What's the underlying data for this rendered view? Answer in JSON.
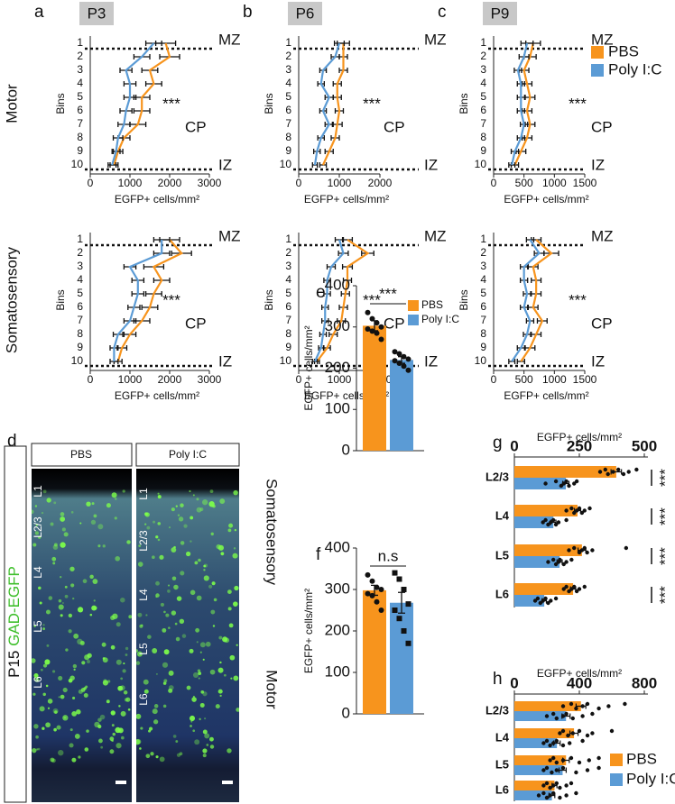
{
  "chart_data": [
    {
      "type": "line",
      "orientation": "horizontal",
      "panel_label": "a",
      "tag": "P3",
      "row_label": "Motor",
      "ylabel": "Bins",
      "xlabel": "EGFP+ cells/mm²",
      "categories": [
        "1",
        "2",
        "3",
        "4",
        "5",
        "6",
        "7",
        "8",
        "9",
        "10"
      ],
      "xlim": [
        0,
        3000
      ],
      "xticks": [
        0,
        1000,
        2000,
        3000
      ],
      "annotations": {
        "top": "MZ",
        "middle": "CP",
        "bottom": "IZ",
        "stat": "***"
      },
      "series": [
        {
          "name": "PBS",
          "color": "#f7941d",
          "values": [
            1900,
            2000,
            1500,
            1600,
            1300,
            1300,
            1200,
            850,
            700,
            600
          ],
          "errors": [
            250,
            250,
            200,
            200,
            200,
            200,
            200,
            150,
            120,
            100
          ]
        },
        {
          "name": "Poly I:C",
          "color": "#5b9bd5",
          "values": [
            1600,
            1300,
            900,
            1000,
            1000,
            900,
            850,
            700,
            650,
            550
          ],
          "errors": [
            200,
            200,
            150,
            150,
            150,
            150,
            150,
            120,
            100,
            100
          ]
        }
      ]
    },
    {
      "type": "line",
      "orientation": "horizontal",
      "panel_label": "b",
      "tag": "P6",
      "ylabel": "Bins",
      "xlabel": "EGFP+ cells/mm²",
      "categories": [
        "1",
        "2",
        "3",
        "4",
        "5",
        "6",
        "7",
        "8",
        "9",
        "10"
      ],
      "xlim": [
        0,
        2000
      ],
      "xticks": [
        0,
        1000,
        2000
      ],
      "annotations": {
        "top": "MZ",
        "middle": "CP",
        "bottom": "IZ",
        "stat": "***"
      },
      "series": [
        {
          "name": "PBS",
          "color": "#f7941d",
          "values": [
            1100,
            1100,
            1100,
            950,
            950,
            1000,
            950,
            900,
            750,
            600
          ],
          "errors": [
            150,
            100,
            100,
            100,
            100,
            100,
            120,
            100,
            100,
            80
          ]
        },
        {
          "name": "Poly I:C",
          "color": "#5b9bd5",
          "values": [
            1000,
            900,
            600,
            550,
            750,
            600,
            750,
            550,
            450,
            400
          ],
          "errors": [
            120,
            100,
            80,
            80,
            100,
            80,
            100,
            80,
            80,
            60
          ]
        }
      ]
    },
    {
      "type": "line",
      "orientation": "horizontal",
      "panel_label": "c",
      "tag": "P9",
      "ylabel": "Bins",
      "xlabel": "EGFP+ cells/mm²",
      "categories": [
        "1",
        "2",
        "3",
        "4",
        "5",
        "6",
        "7",
        "8",
        "9",
        "10"
      ],
      "xlim": [
        0,
        1500
      ],
      "xticks": [
        0,
        500,
        1000,
        1500
      ],
      "legend": "right",
      "annotations": {
        "top": "MZ",
        "middle": "CP",
        "bottom": "IZ",
        "stat": "***"
      },
      "series": [
        {
          "name": "PBS",
          "color": "#f7941d",
          "values": [
            650,
            600,
            500,
            550,
            600,
            550,
            600,
            550,
            450,
            350
          ],
          "errors": [
            120,
            100,
            80,
            80,
            80,
            80,
            80,
            80,
            80,
            60
          ]
        },
        {
          "name": "Poly I:C",
          "color": "#5b9bd5",
          "values": [
            550,
            500,
            400,
            450,
            450,
            450,
            500,
            450,
            350,
            300
          ],
          "errors": [
            100,
            80,
            60,
            60,
            60,
            60,
            60,
            60,
            60,
            50
          ]
        }
      ]
    },
    {
      "type": "line",
      "orientation": "horizontal",
      "row_label": "Somatosensory",
      "ylabel": "Bins",
      "xlabel": "EGFP+ cells/mm²",
      "categories": [
        "1",
        "2",
        "3",
        "4",
        "5",
        "6",
        "7",
        "8",
        "9",
        "10"
      ],
      "xlim": [
        0,
        3000
      ],
      "xticks": [
        0,
        1000,
        2000,
        3000
      ],
      "annotations": {
        "top": "MZ",
        "middle": "CP",
        "bottom": "IZ",
        "stat": "***"
      },
      "series": [
        {
          "name": "PBS",
          "color": "#f7941d",
          "values": [
            2000,
            2300,
            1600,
            1800,
            1600,
            1500,
            1300,
            1000,
            800,
            700
          ],
          "errors": [
            250,
            250,
            250,
            200,
            200,
            200,
            200,
            150,
            120,
            100
          ]
        },
        {
          "name": "Poly I:C",
          "color": "#5b9bd5",
          "values": [
            1800,
            1800,
            1000,
            1200,
            1200,
            1100,
            1000,
            700,
            600,
            600
          ],
          "errors": [
            200,
            200,
            150,
            150,
            150,
            150,
            150,
            120,
            100,
            100
          ]
        }
      ]
    },
    {
      "type": "line",
      "orientation": "horizontal",
      "ylabel": "Bins",
      "xlabel": "EGFP+ cells/mm²",
      "categories": [
        "1",
        "2",
        "3",
        "4",
        "5",
        "6",
        "7",
        "8",
        "9",
        "10"
      ],
      "xlim": [
        0,
        2000
      ],
      "xticks": [
        0,
        1000,
        2000
      ],
      "annotations": {
        "top": "MZ",
        "middle": "CP",
        "bottom": "IZ",
        "stat": "***"
      },
      "series": [
        {
          "name": "PBS",
          "color": "#f7941d",
          "values": [
            1200,
            1700,
            1200,
            1200,
            1150,
            1100,
            1050,
            850,
            700,
            450
          ],
          "errors": [
            120,
            150,
            120,
            100,
            100,
            100,
            100,
            100,
            80,
            60
          ]
        },
        {
          "name": "Poly I:C",
          "color": "#5b9bd5",
          "values": [
            1000,
            1100,
            800,
            700,
            700,
            650,
            650,
            600,
            550,
            400
          ],
          "errors": [
            100,
            120,
            100,
            80,
            80,
            80,
            80,
            80,
            60,
            60
          ]
        }
      ]
    },
    {
      "type": "line",
      "orientation": "horizontal",
      "ylabel": "Bins",
      "xlabel": "EGFP+ cells/mm²",
      "categories": [
        "1",
        "2",
        "3",
        "4",
        "5",
        "6",
        "7",
        "8",
        "9",
        "10"
      ],
      "xlim": [
        0,
        1500
      ],
      "xticks": [
        0,
        500,
        1000,
        1500
      ],
      "annotations": {
        "top": "MZ",
        "middle": "CP",
        "bottom": "IZ",
        "stat": "***"
      },
      "series": [
        {
          "name": "PBS",
          "color": "#f7941d",
          "values": [
            700,
            950,
            650,
            700,
            700,
            650,
            800,
            700,
            600,
            450
          ],
          "errors": [
            80,
            120,
            80,
            80,
            80,
            80,
            80,
            80,
            80,
            60
          ]
        },
        {
          "name": "Poly I:C",
          "color": "#5b9bd5",
          "values": [
            600,
            750,
            500,
            500,
            550,
            500,
            600,
            550,
            450,
            300
          ],
          "errors": [
            60,
            80,
            60,
            60,
            60,
            60,
            60,
            60,
            60,
            50
          ]
        }
      ]
    },
    {
      "type": "bar",
      "panel_label": "e",
      "ylabel": "EGFP+ cells/mm²",
      "ylim": [
        0,
        400
      ],
      "yticks": [
        0,
        100,
        200,
        300,
        400
      ],
      "annotation": "***",
      "legend": "upper right",
      "series": [
        {
          "name": "PBS",
          "color": "#f7941d",
          "marker": "circle",
          "values": [
            303
          ],
          "errors": [
            12
          ],
          "points": [
            335,
            320,
            310,
            300,
            295,
            290,
            285,
            270
          ]
        },
        {
          "name": "Poly I:C",
          "color": "#5b9bd5",
          "marker": "circle",
          "values": [
            220
          ],
          "errors": [
            8
          ],
          "points": [
            240,
            235,
            228,
            222,
            218,
            212,
            205,
            195
          ]
        }
      ]
    },
    {
      "type": "bar",
      "panel_label": "f",
      "ylabel": "EGFP+ cells/mm²",
      "ylim": [
        0,
        400
      ],
      "yticks": [
        0,
        100,
        200,
        300,
        400
      ],
      "annotation": "n.s",
      "series": [
        {
          "color": "#f7941d",
          "marker": "circle",
          "values": [
            298
          ],
          "errors": [
            12
          ],
          "points": [
            335,
            320,
            305,
            300,
            290,
            285,
            270,
            250
          ]
        },
        {
          "color": "#5b9bd5",
          "marker": "square",
          "values": [
            268
          ],
          "errors": [
            25
          ],
          "points": [
            340,
            325,
            300,
            265,
            250,
            230,
            200,
            170
          ]
        }
      ]
    },
    {
      "type": "hbar",
      "panel_label": "g",
      "xlabel": "EGFP+ cells/mm²",
      "categories": [
        "L2/3",
        "L4",
        "L5",
        "L6"
      ],
      "xlim": [
        0,
        500
      ],
      "xticks": [
        0,
        250,
        500
      ],
      "significance": [
        "***",
        "***",
        "***",
        "***"
      ],
      "series": [
        {
          "color": "#f7941d",
          "values": [
            392,
            243,
            260,
            226
          ],
          "errors": [
            20,
            12,
            15,
            10
          ],
          "points": [
            [
              470,
              440,
              420,
              400,
              380,
              360,
              350,
              330
            ],
            [
              290,
              270,
              260,
              250,
              240,
              230,
              220,
              200
            ],
            [
              430,
              300,
              280,
              270,
              260,
              250,
              230,
              210
            ],
            [
              270,
              250,
              240,
              230,
              220,
              210,
              200,
              190
            ]
          ]
        },
        {
          "color": "#5b9bd5",
          "values": [
            198,
            150,
            174,
            115
          ],
          "errors": [
            12,
            10,
            10,
            8
          ],
          "points": [
            [
              240,
              230,
              210,
              200,
              190,
              180,
              160,
              120
            ],
            [
              200,
              170,
              160,
              150,
              140,
              130,
              120,
              110
            ],
            [
              220,
              200,
              190,
              175,
              170,
              160,
              150,
              130
            ],
            [
              160,
              140,
              130,
              120,
              110,
              100,
              90,
              80
            ]
          ]
        }
      ]
    },
    {
      "type": "hbar",
      "panel_label": "h",
      "xlabel": "EGFP+ cells/mm²",
      "categories": [
        "L2/3",
        "L4",
        "L5",
        "L6"
      ],
      "xlim": [
        0,
        800
      ],
      "xticks": [
        0,
        400,
        800
      ],
      "legend": "lower right",
      "series": [
        {
          "name": "PBS",
          "color": "#f7941d",
          "values": [
            410,
            367,
            318,
            247
          ],
          "errors": [
            30,
            25,
            20,
            15
          ],
          "points": [
            [
              680,
              580,
              520,
              450,
              420,
              380,
              350,
              300
            ],
            [
              600,
              480,
              450,
              400,
              360,
              330,
              300,
              280
            ],
            [
              520,
              460,
              400,
              350,
              300,
              260,
              240,
              220
            ],
            [
              350,
              320,
              280,
              260,
              240,
              220,
              200,
              180
            ]
          ]
        },
        {
          "name": "Poly I:C",
          "color": "#5b9bd5",
          "values": [
            318,
            262,
            297,
            231
          ],
          "errors": [
            25,
            20,
            22,
            18
          ],
          "points": [
            [
              480,
              420,
              360,
              320,
              300,
              260,
              240,
              200
            ],
            [
              420,
              340,
              300,
              260,
              240,
              220,
              200,
              180
            ],
            [
              520,
              450,
              380,
              300,
              260,
              230,
              200,
              180
            ],
            [
              380,
              320,
              280,
              240,
              220,
              200,
              180,
              150
            ]
          ]
        }
      ]
    }
  ],
  "image_panel": {
    "label": "d",
    "title_prefix": "P15",
    "title_marker": "GAD-EGFP",
    "columns": [
      {
        "header": "PBS",
        "layers": [
          "L1",
          "L2/3",
          "L4",
          "L5",
          "L6"
        ]
      },
      {
        "header": "Poly I:C",
        "layers": [
          "L1",
          "L2/3",
          "L4",
          "L5",
          "L6"
        ]
      }
    ],
    "region_labels": [
      "Somatosensory",
      "Motor"
    ]
  }
}
